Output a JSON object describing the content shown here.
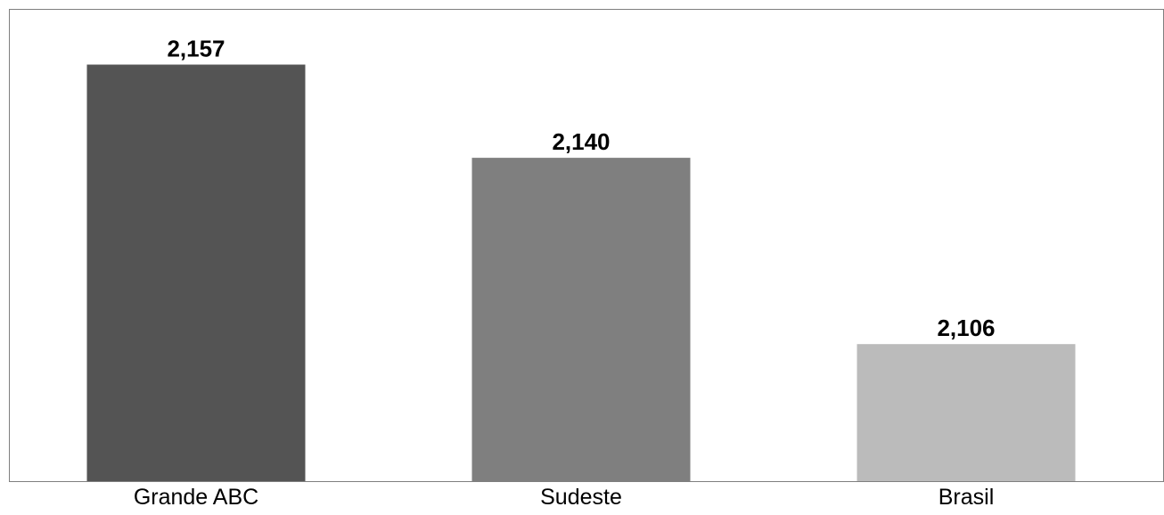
{
  "chart_data": {
    "type": "bar",
    "title": "",
    "xlabel": "",
    "ylabel": "",
    "categories": [
      "Grande ABC",
      "Sudeste",
      "Brasil"
    ],
    "values": [
      2.157,
      2.14,
      2.106
    ],
    "data_labels": [
      "2,157",
      "2,140",
      "2,106"
    ],
    "bar_colors": [
      "#545454",
      "#7f7f7f",
      "#bbbbbb"
    ],
    "ylim": [
      2.081,
      2.167
    ],
    "grid": false,
    "legend": "none"
  }
}
